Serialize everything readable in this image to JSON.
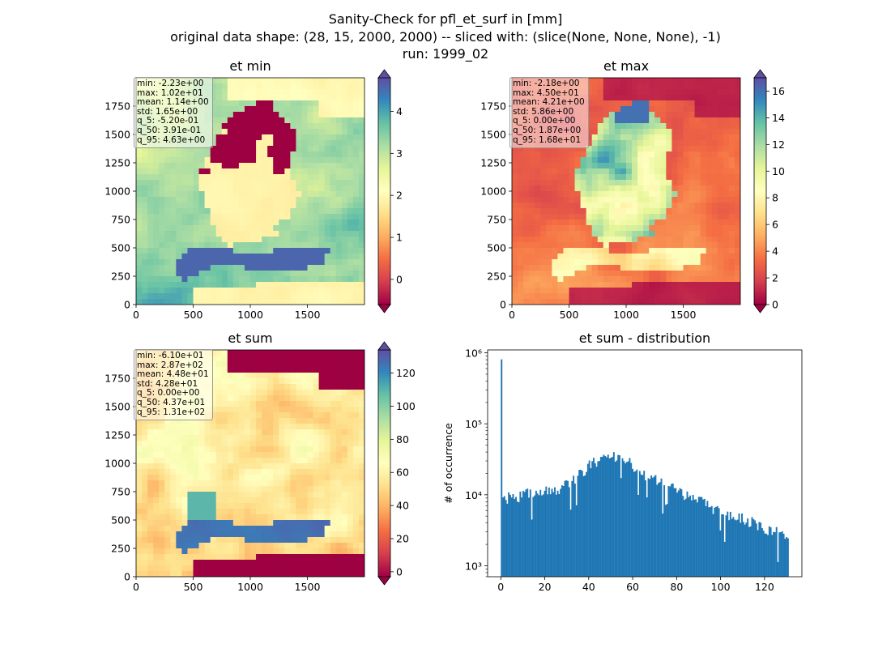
{
  "figure": {
    "title_line1": "Sanity-Check for pfl_et_surf in [mm]",
    "title_line2": "original data shape: (28, 15, 2000, 2000) -- sliced with: (slice(None, None, None), -1)",
    "title_line3": "run: 1999_02"
  },
  "chart_data": [
    {
      "type": "heatmap",
      "title": "et min",
      "colormap": "Spectral",
      "x_ticks": [
        "0",
        "500",
        "1000",
        "1500"
      ],
      "y_ticks": [
        "0",
        "250",
        "500",
        "750",
        "1000",
        "1250",
        "1500",
        "1750"
      ],
      "xlim": [
        0,
        2000
      ],
      "ylim": [
        0,
        2000
      ],
      "colorbar": {
        "vmin": -0.6,
        "vmax": 4.8,
        "ticks": [
          "0",
          "1",
          "2",
          "3",
          "4"
        ],
        "extend": "both"
      },
      "stats": [
        "min: -2.23e+00",
        "max: 1.02e+01",
        "mean: 1.14e+00",
        "std: 1.65e+00",
        "q_5: -5.20e-01",
        "q_50: 3.91e-01",
        "q_95: 4.63e+00"
      ]
    },
    {
      "type": "heatmap",
      "title": "et max",
      "colormap": "Spectral",
      "x_ticks": [
        "0",
        "500",
        "1000",
        "1500"
      ],
      "y_ticks": [
        "0",
        "250",
        "500",
        "750",
        "1000",
        "1250",
        "1500",
        "1750"
      ],
      "xlim": [
        0,
        2000
      ],
      "ylim": [
        0,
        2000
      ],
      "colorbar": {
        "vmin": 0,
        "vmax": 17,
        "ticks": [
          "0",
          "2",
          "4",
          "6",
          "8",
          "10",
          "12",
          "14",
          "16"
        ],
        "extend": "both"
      },
      "stats": [
        "min: -2.18e+00",
        "max: 4.50e+01",
        "mean: 4.21e+00",
        "std: 5.86e+00",
        "q_5: 0.00e+00",
        "q_50: 1.87e+00",
        "q_95: 1.68e+01"
      ]
    },
    {
      "type": "heatmap",
      "title": "et sum",
      "colormap": "Spectral",
      "x_ticks": [
        "0",
        "500",
        "1000",
        "1500"
      ],
      "y_ticks": [
        "0",
        "250",
        "500",
        "750",
        "1000",
        "1250",
        "1500",
        "1750"
      ],
      "xlim": [
        0,
        2000
      ],
      "ylim": [
        0,
        2000
      ],
      "colorbar": {
        "vmin": -3,
        "vmax": 134,
        "ticks": [
          "0",
          "20",
          "40",
          "60",
          "80",
          "100",
          "120"
        ],
        "extend": "both"
      },
      "stats": [
        "min: -6.10e+01",
        "max: 2.87e+02",
        "mean: 4.48e+01",
        "std: 4.28e+01",
        "q_5: 0.00e+00",
        "q_50: 4.37e+01",
        "q_95: 1.31e+02"
      ]
    },
    {
      "type": "bar",
      "title": "et sum - distribution",
      "ylabel": "# of occurrence",
      "xlabel": "",
      "yscale": "log",
      "xlim": [
        -6,
        137
      ],
      "ylim": [
        700,
        1100000
      ],
      "x_ticks": [
        "0",
        "20",
        "40",
        "60",
        "80",
        "100",
        "120"
      ],
      "y_ticks": [
        "10³",
        "10⁴",
        "10⁵",
        "10⁶"
      ],
      "bar_color": "#1f77b4",
      "bins": {
        "start": 0,
        "end": 131,
        "count": 200
      },
      "spike": {
        "x": 0,
        "count": 810000
      },
      "curve_points": [
        [
          0.7,
          9500
        ],
        [
          5,
          9200
        ],
        [
          10,
          10000
        ],
        [
          15,
          10500
        ],
        [
          20,
          11000
        ],
        [
          25,
          11500
        ],
        [
          30,
          13500
        ],
        [
          35,
          18000
        ],
        [
          40,
          26000
        ],
        [
          45,
          33000
        ],
        [
          50,
          36500
        ],
        [
          55,
          34500
        ],
        [
          60,
          27000
        ],
        [
          65,
          20500
        ],
        [
          70,
          16500
        ],
        [
          75,
          14500
        ],
        [
          80,
          12000
        ],
        [
          85,
          10000
        ],
        [
          90,
          8500
        ],
        [
          95,
          7000
        ],
        [
          100,
          6000
        ],
        [
          105,
          5200
        ],
        [
          110,
          4700
        ],
        [
          115,
          4000
        ],
        [
          120,
          3500
        ],
        [
          125,
          3000
        ],
        [
          131,
          2500
        ]
      ]
    }
  ]
}
